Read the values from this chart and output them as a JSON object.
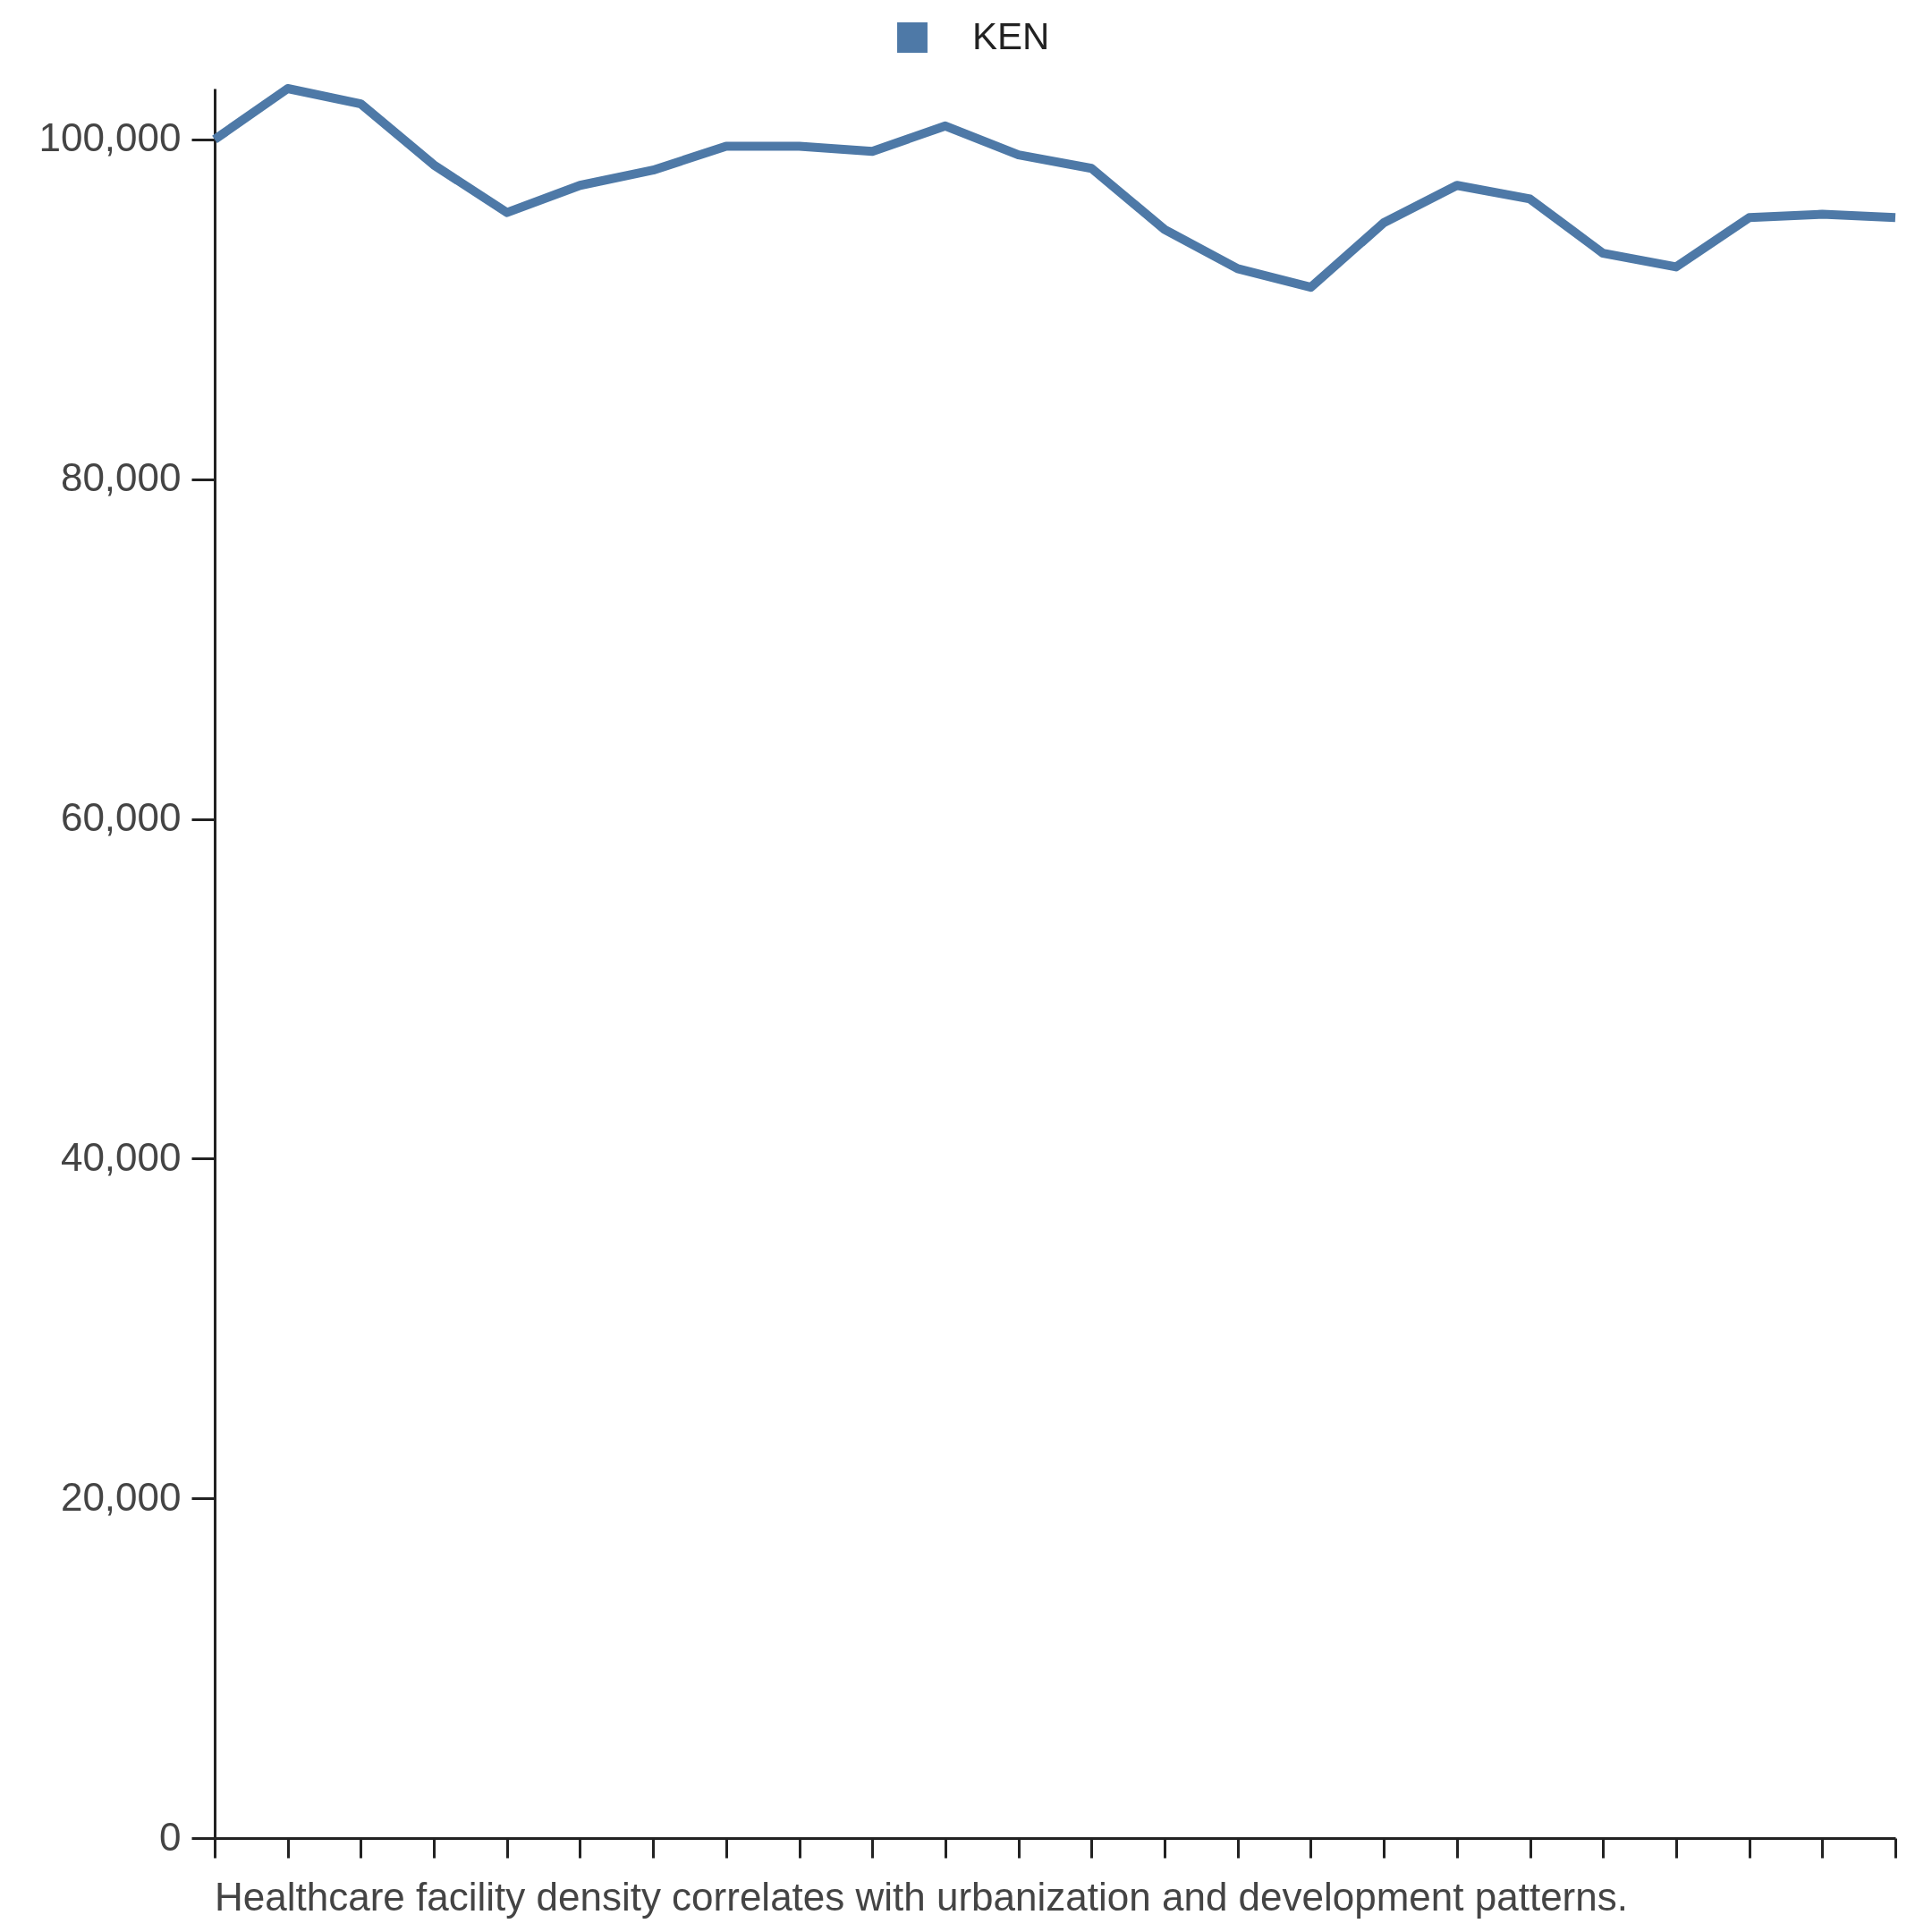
{
  "chart_data": {
    "type": "line",
    "categories": [
      null,
      null,
      null,
      null,
      null,
      null,
      null,
      null,
      null,
      null,
      null,
      null,
      null,
      null,
      null,
      null,
      null,
      null,
      null,
      null,
      null,
      null,
      null,
      null
    ],
    "series": [
      {
        "name": "KEN",
        "color": "#4e79a7",
        "values": [
          100000,
          103000,
          102100,
          98500,
          95700,
          97300,
          98200,
          99600,
          99600,
          99300,
          100800,
          99100,
          98300,
          94700,
          92400,
          91300,
          95100,
          97300,
          96500,
          93300,
          92500,
          95400,
          95600,
          95400
        ]
      }
    ],
    "ylim": [
      0,
      103000
    ],
    "yticks": [
      0,
      {
        "value": 20000,
        "label": "20,000"
      },
      {
        "value": 40000,
        "label": "40,000"
      },
      {
        "value": 60000,
        "label": "60,000"
      },
      {
        "value": 80000,
        "label": "80,000"
      },
      {
        "value": 100000,
        "label": "100,000"
      }
    ],
    "legend": "top",
    "marker": "none",
    "line_style": "solid",
    "tick_labels": "y",
    "annotations": [
      "Healthcare facility density correlates with urbanization and development patterns."
    ]
  }
}
